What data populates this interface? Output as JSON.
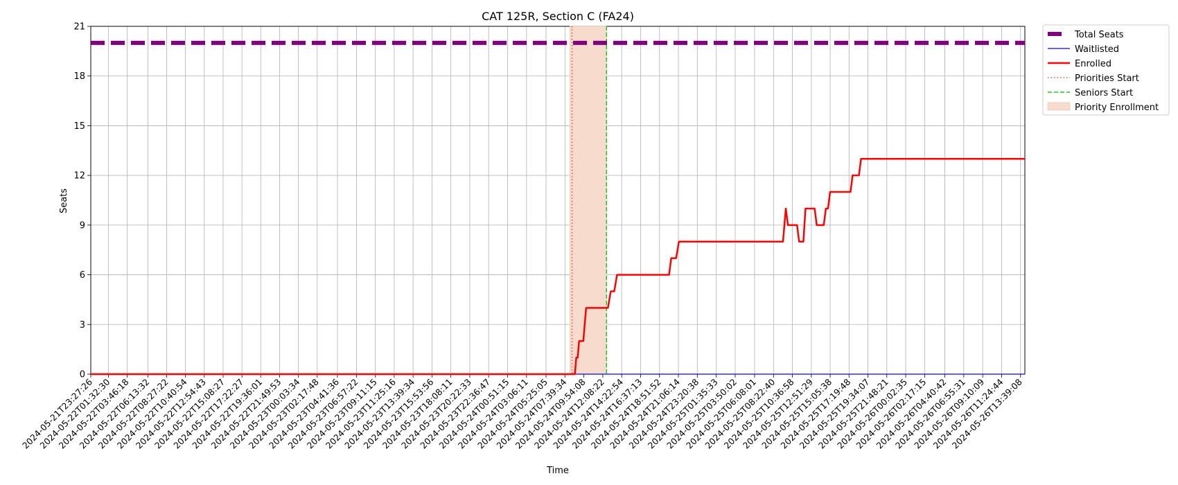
{
  "chart_data": {
    "type": "line",
    "title": "CAT 125R, Section C (FA24)",
    "xlabel": "Time",
    "ylabel": "Seats",
    "ylim": [
      0,
      21
    ],
    "y_ticks": [
      0,
      3,
      6,
      9,
      12,
      15,
      18,
      21
    ],
    "x_range": [
      "2024-05-21T23:27:26",
      "2024-05-26T14:10:00"
    ],
    "x_tick_labels": [
      "2024-05-21T23:27:26",
      "2024-05-22T01:32:30",
      "2024-05-22T03:46:18",
      "2024-05-22T06:13:32",
      "2024-05-22T08:27:22",
      "2024-05-22T10:40:54",
      "2024-05-22T12:54:43",
      "2024-05-22T15:08:27",
      "2024-05-22T17:22:27",
      "2024-05-22T19:36:01",
      "2024-05-22T21:49:53",
      "2024-05-23T00:03:34",
      "2024-05-23T02:17:48",
      "2024-05-23T04:41:36",
      "2024-05-23T06:57:22",
      "2024-05-23T09:11:15",
      "2024-05-23T11:25:16",
      "2024-05-23T13:39:34",
      "2024-05-23T15:53:56",
      "2024-05-23T18:08:11",
      "2024-05-23T20:22:33",
      "2024-05-23T22:36:47",
      "2024-05-24T00:51:15",
      "2024-05-24T03:06:11",
      "2024-05-24T05:25:05",
      "2024-05-24T07:39:34",
      "2024-05-24T09:54:08",
      "2024-05-24T12:08:22",
      "2024-05-24T14:22:54",
      "2024-05-24T16:37:13",
      "2024-05-24T18:51:52",
      "2024-05-24T21:06:14",
      "2024-05-24T23:20:38",
      "2024-05-25T01:35:33",
      "2024-05-25T03:50:02",
      "2024-05-25T06:08:01",
      "2024-05-25T08:22:40",
      "2024-05-25T10:36:58",
      "2024-05-25T12:51:29",
      "2024-05-25T15:05:38",
      "2024-05-25T17:19:48",
      "2024-05-25T19:34:07",
      "2024-05-25T21:48:21",
      "2024-05-26T00:02:35",
      "2024-05-26T02:17:15",
      "2024-05-26T04:40:42",
      "2024-05-26T06:55:31",
      "2024-05-26T09:10:09",
      "2024-05-26T11:24:44",
      "2024-05-26T13:39:08"
    ],
    "grid": true,
    "legend_position": "outside-top-right",
    "series": [
      {
        "name": "Total Seats",
        "color": "#800080",
        "style": "dashed-thick",
        "points": [
          [
            "2024-05-21T23:27:26",
            20
          ],
          [
            "2024-05-26T14:10:00",
            20
          ]
        ]
      },
      {
        "name": "Waitlisted",
        "color": "#0000ff",
        "style": "solid-thin",
        "points": [
          [
            "2024-05-21T23:27:26",
            0
          ],
          [
            "2024-05-26T14:10:00",
            0
          ]
        ]
      },
      {
        "name": "Enrolled",
        "color": "#ff0000",
        "style": "solid-thick",
        "points": [
          [
            "2024-05-21T23:27:26",
            0
          ],
          [
            "2024-05-24T08:50:00",
            0
          ],
          [
            "2024-05-24T09:00:00",
            1
          ],
          [
            "2024-05-24T09:10:00",
            1
          ],
          [
            "2024-05-24T09:20:00",
            2
          ],
          [
            "2024-05-24T09:50:00",
            2
          ],
          [
            "2024-05-24T10:10:00",
            4
          ],
          [
            "2024-05-24T12:45:00",
            4
          ],
          [
            "2024-05-24T13:05:00",
            5
          ],
          [
            "2024-05-24T13:30:00",
            5
          ],
          [
            "2024-05-24T13:50:00",
            6
          ],
          [
            "2024-05-24T20:00:00",
            6
          ],
          [
            "2024-05-24T20:15:00",
            7
          ],
          [
            "2024-05-24T20:50:00",
            7
          ],
          [
            "2024-05-24T21:10:00",
            8
          ],
          [
            "2024-05-25T09:30:00",
            8
          ],
          [
            "2024-05-25T09:50:00",
            10
          ],
          [
            "2024-05-25T10:05:00",
            9
          ],
          [
            "2024-05-25T11:10:00",
            9
          ],
          [
            "2024-05-25T11:25:00",
            8
          ],
          [
            "2024-05-25T11:55:00",
            8
          ],
          [
            "2024-05-25T12:10:00",
            10
          ],
          [
            "2024-05-25T13:15:00",
            10
          ],
          [
            "2024-05-25T13:30:00",
            9
          ],
          [
            "2024-05-25T14:20:00",
            9
          ],
          [
            "2024-05-25T14:35:00",
            10
          ],
          [
            "2024-05-25T14:50:00",
            10
          ],
          [
            "2024-05-25T15:05:00",
            11
          ],
          [
            "2024-05-25T17:30:00",
            11
          ],
          [
            "2024-05-25T17:45:00",
            12
          ],
          [
            "2024-05-25T18:30:00",
            12
          ],
          [
            "2024-05-25T18:45:00",
            13
          ],
          [
            "2024-05-26T14:10:00",
            13
          ]
        ]
      }
    ],
    "markers": {
      "priorities_start": {
        "label": "Priorities Start",
        "x": "2024-05-24T08:30:00",
        "color": "#e8502a",
        "style": "dotted"
      },
      "seniors_start": {
        "label": "Seniors Start",
        "x": "2024-05-24T12:35:00",
        "color": "#22c322",
        "style": "dashed"
      },
      "priority_enrollment": {
        "label": "Priority Enrollment",
        "from": "2024-05-24T08:15:00",
        "to": "2024-05-24T12:35:00",
        "color": "#f7dccd"
      }
    }
  }
}
